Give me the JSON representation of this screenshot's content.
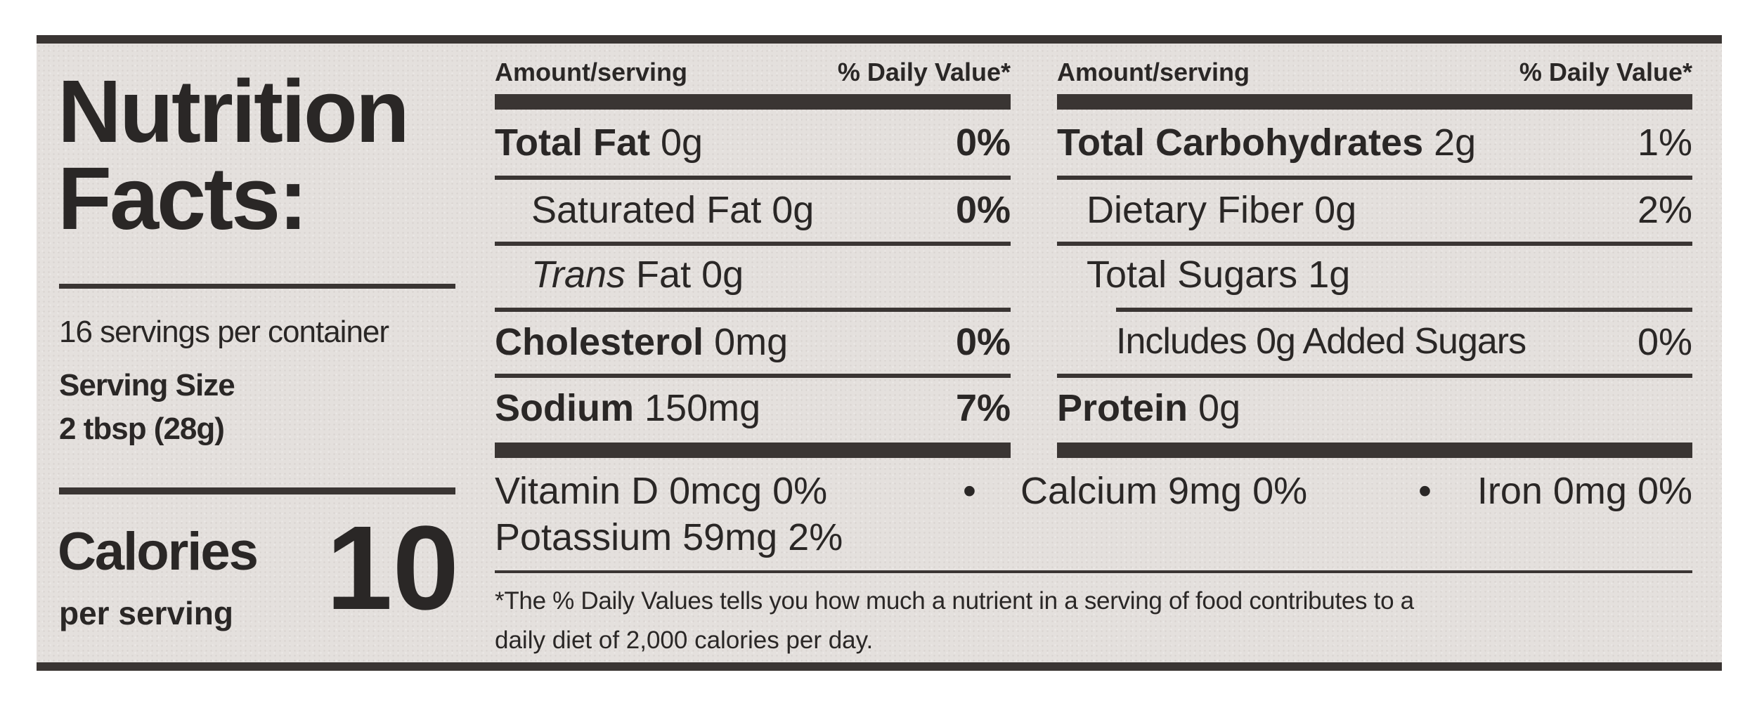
{
  "title_line1": "Nutrition",
  "title_line2": "Facts:",
  "servings_per_container": "16 servings per container",
  "serving_size_label": "Serving Size",
  "serving_size_value": "2 tbsp (28g)",
  "calories_label": "Calories",
  "calories_sublabel": "per serving",
  "calories_value": "10",
  "header_amount": "Amount/serving",
  "header_dv": "% Daily Value*",
  "left_column": {
    "total_fat": {
      "name": "Total Fat",
      "amount": "0g",
      "dv": "0%"
    },
    "saturated_fat": {
      "name": "Saturated Fat",
      "amount": "0g",
      "dv": "0%"
    },
    "trans_fat": {
      "name_italic": "Trans",
      "name": "Fat",
      "amount": "0g"
    },
    "cholesterol": {
      "name": "Cholesterol",
      "amount": "0mg",
      "dv": "0%"
    },
    "sodium": {
      "name": "Sodium",
      "amount": "150mg",
      "dv": "7%"
    }
  },
  "right_column": {
    "total_carbohydrates": {
      "name": "Total Carbohydrates",
      "amount": "2g",
      "dv": "1%"
    },
    "dietary_fiber": {
      "name": "Dietary Fiber",
      "amount": "0g",
      "dv": "2%"
    },
    "total_sugars": {
      "name": "Total Sugars",
      "amount": "1g"
    },
    "added_sugars": {
      "text": "Includes 0g Added Sugars",
      "dv": "0%"
    },
    "protein": {
      "name": "Protein",
      "amount": "0g"
    }
  },
  "vitamins": {
    "vitamin_d": "Vitamin D 0mcg 0%",
    "calcium": "Calcium 9mg 0%",
    "iron": "Iron 0mg 0%",
    "potassium": "Potassium 59mg 2%",
    "separator": "•"
  },
  "footnote_line1": "*The % Daily Values tells you how much a nutrient in a serving of food contributes to a",
  "footnote_line2": "daily diet of 2,000 calories per day."
}
